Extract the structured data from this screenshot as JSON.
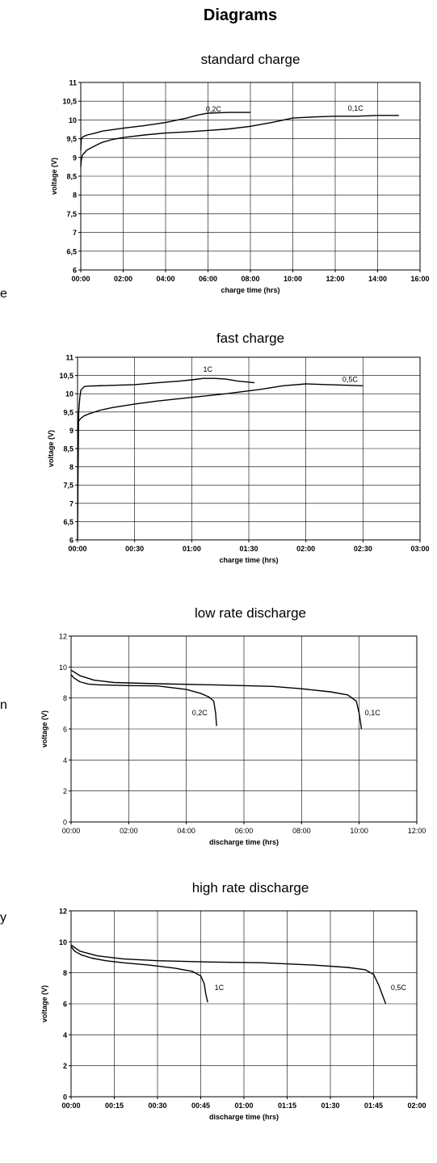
{
  "page": {
    "title": "Diagrams",
    "left_fragments": [
      "e",
      "n",
      "y"
    ]
  },
  "chart_data": [
    {
      "type": "line",
      "title": "standard charge",
      "xlabel": "charge time (hrs)",
      "ylabel": "voltage (V)",
      "x_unit": "hours",
      "xlim": [
        0,
        16
      ],
      "ylim": [
        6,
        11
      ],
      "x_tick_values": [
        0,
        2,
        4,
        6,
        8,
        10,
        12,
        14,
        16
      ],
      "x_tick_labels": [
        "00:00",
        "02:00",
        "04:00",
        "06:00",
        "08:00",
        "10:00",
        "12:00",
        "14:00",
        "16:00"
      ],
      "y_tick_values": [
        6,
        6.5,
        7,
        7.5,
        8,
        8.5,
        9,
        9.5,
        10,
        10.5,
        11
      ],
      "y_tick_labels": [
        "6",
        "6,5",
        "7",
        "7,5",
        "8",
        "8,5",
        "9",
        "9,5",
        "10",
        "10,5",
        "11"
      ],
      "grid": true,
      "y_tick_bold": true,
      "series": [
        {
          "name": "0,2C",
          "x": [
            0,
            0.02,
            0.05,
            0.1,
            0.3,
            0.7,
            1,
            2,
            3,
            4,
            5,
            5.5,
            6,
            7,
            8
          ],
          "y": [
            9.2,
            9.45,
            9.52,
            9.55,
            9.6,
            9.65,
            9.7,
            9.78,
            9.85,
            9.93,
            10.05,
            10.13,
            10.18,
            10.2,
            10.2
          ],
          "label_at": [
            5.9,
            10.22
          ]
        },
        {
          "name": "0,1C",
          "x": [
            0,
            0.02,
            0.05,
            0.1,
            0.3,
            0.7,
            1,
            1.5,
            2,
            3,
            4,
            5,
            6,
            7,
            8,
            9,
            10,
            11,
            12,
            13,
            14,
            15
          ],
          "y": [
            8.75,
            8.9,
            9.0,
            9.08,
            9.2,
            9.32,
            9.4,
            9.48,
            9.53,
            9.6,
            9.65,
            9.68,
            9.72,
            9.76,
            9.83,
            9.93,
            10.05,
            10.08,
            10.1,
            10.1,
            10.12,
            10.12
          ],
          "label_at": [
            12.6,
            10.25
          ]
        }
      ]
    },
    {
      "type": "line",
      "title": "fast charge",
      "xlabel": "charge time (hrs)",
      "ylabel": "voltage (V)",
      "x_unit": "hours",
      "xlim": [
        0,
        3
      ],
      "ylim": [
        6,
        11
      ],
      "x_tick_values": [
        0,
        0.5,
        1,
        1.5,
        2,
        2.5,
        3
      ],
      "x_tick_labels": [
        "00:00",
        "00:30",
        "01:00",
        "01:30",
        "02:00",
        "02:30",
        "03:00"
      ],
      "y_tick_values": [
        6,
        6.5,
        7,
        7.5,
        8,
        8.5,
        9,
        9.5,
        10,
        10.5,
        11
      ],
      "y_tick_labels": [
        "6",
        "6,5",
        "7",
        "7,5",
        "8",
        "8,5",
        "9",
        "9,5",
        "10",
        "10,5",
        "11"
      ],
      "grid": true,
      "y_tick_bold": true,
      "series": [
        {
          "name": "1C",
          "x": [
            0,
            0.005,
            0.01,
            0.02,
            0.03,
            0.06,
            0.1,
            0.3,
            0.5,
            0.7,
            0.9,
            1.0,
            1.1,
            1.2,
            1.3,
            1.4,
            1.55
          ],
          "y": [
            6.0,
            8.0,
            9.5,
            9.9,
            10.1,
            10.2,
            10.21,
            10.23,
            10.25,
            10.3,
            10.35,
            10.38,
            10.42,
            10.42,
            10.4,
            10.35,
            10.3
          ],
          "label_at": [
            1.1,
            10.6
          ]
        },
        {
          "name": "0,5C",
          "x": [
            0,
            0.01,
            0.03,
            0.06,
            0.1,
            0.2,
            0.3,
            0.5,
            0.7,
            1.0,
            1.3,
            1.6,
            1.8,
            2.0,
            2.2,
            2.5
          ],
          "y": [
            9.15,
            9.25,
            9.33,
            9.4,
            9.45,
            9.55,
            9.62,
            9.72,
            9.8,
            9.9,
            10.0,
            10.12,
            10.22,
            10.27,
            10.25,
            10.22
          ],
          "label_at": [
            2.32,
            10.32
          ]
        }
      ]
    },
    {
      "type": "line",
      "title": "low rate discharge",
      "xlabel": "discharge time (hrs)",
      "ylabel": "voltage (V)",
      "x_unit": "hours",
      "xlim": [
        0,
        12
      ],
      "ylim": [
        0,
        12
      ],
      "x_tick_values": [
        0,
        2,
        4,
        6,
        8,
        10,
        12
      ],
      "x_tick_labels": [
        "00:00",
        "02:00",
        "04:00",
        "06:00",
        "08:00",
        "10:00",
        "12:00"
      ],
      "y_tick_values": [
        0,
        2,
        4,
        6,
        8,
        10,
        12
      ],
      "y_tick_labels": [
        "0",
        "2",
        "4",
        "6",
        "8",
        "10",
        "12"
      ],
      "grid": true,
      "y_tick_bold": false,
      "series": [
        {
          "name": "0,2C",
          "x": [
            0,
            0.1,
            0.3,
            0.6,
            1,
            2,
            3,
            4,
            4.5,
            4.8,
            4.95,
            5.02,
            5.05
          ],
          "y": [
            9.5,
            9.3,
            9.05,
            8.9,
            8.85,
            8.8,
            8.78,
            8.55,
            8.3,
            8.05,
            7.8,
            7.0,
            6.2
          ],
          "label_at": [
            4.2,
            6.9
          ]
        },
        {
          "name": "0,1C",
          "x": [
            0,
            0.3,
            0.8,
            1.5,
            3,
            5,
            7,
            8,
            9,
            9.6,
            9.9,
            10.0,
            10.08
          ],
          "y": [
            9.8,
            9.45,
            9.15,
            9.0,
            8.92,
            8.85,
            8.75,
            8.6,
            8.4,
            8.2,
            7.8,
            7.0,
            6.0
          ],
          "label_at": [
            10.2,
            6.9
          ]
        }
      ]
    },
    {
      "type": "line",
      "title": "high rate discharge",
      "xlabel": "discharge time (hrs)",
      "ylabel": "voltage (V)",
      "x_unit": "hours",
      "xlim": [
        0,
        2
      ],
      "ylim": [
        0,
        12
      ],
      "x_tick_values": [
        0,
        0.25,
        0.5,
        0.75,
        1,
        1.25,
        1.5,
        1.75,
        2
      ],
      "x_tick_labels": [
        "00:00",
        "00:15",
        "00:30",
        "00:45",
        "01:00",
        "01:15",
        "01:30",
        "01:45",
        "02:00"
      ],
      "y_tick_values": [
        0,
        2,
        4,
        6,
        8,
        10,
        12
      ],
      "y_tick_labels": [
        "0",
        "2",
        "4",
        "6",
        "8",
        "10",
        "12"
      ],
      "grid": true,
      "y_tick_bold": true,
      "series": [
        {
          "name": "1C",
          "x": [
            0,
            0.02,
            0.06,
            0.12,
            0.2,
            0.3,
            0.45,
            0.6,
            0.7,
            0.75,
            0.77,
            0.78,
            0.79
          ],
          "y": [
            9.7,
            9.4,
            9.15,
            8.95,
            8.78,
            8.65,
            8.5,
            8.3,
            8.1,
            7.8,
            7.3,
            6.6,
            6.1
          ],
          "label_at": [
            0.83,
            6.9
          ]
        },
        {
          "name": "0,5C",
          "x": [
            0,
            0.05,
            0.15,
            0.3,
            0.5,
            0.8,
            1.1,
            1.4,
            1.6,
            1.7,
            1.75,
            1.78,
            1.8,
            1.82
          ],
          "y": [
            9.8,
            9.4,
            9.1,
            8.9,
            8.78,
            8.7,
            8.65,
            8.5,
            8.35,
            8.2,
            7.9,
            7.2,
            6.6,
            6.0
          ],
          "label_at": [
            1.85,
            6.9
          ]
        }
      ]
    }
  ]
}
